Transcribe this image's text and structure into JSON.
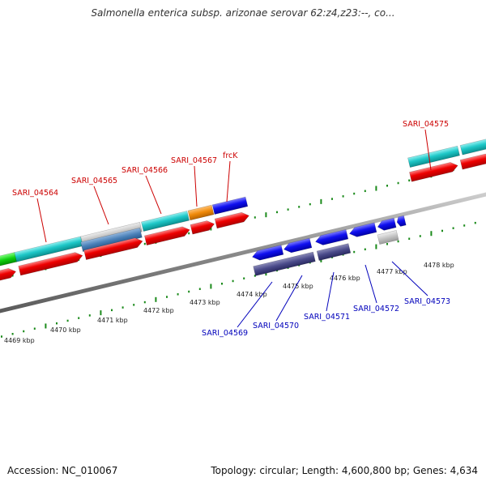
{
  "title": "Salmonella enterica subsp. arizonae serovar 62:z4,z23:--, co...",
  "footer": {
    "accession": "Accession: NC_010067",
    "summary": "Topology: circular; Length: 4,600,800 bp; Genes: 4,634"
  },
  "colors": {
    "forward_label": "#cc0000",
    "reverse_label": "#0000bb",
    "tick": "#1a8a1a",
    "cyan": "gCyan",
    "red": "gRed",
    "blue": "gBlue",
    "navy": "gNavy",
    "gray": "gGray",
    "steel": "gSteel",
    "orange": "gOrange",
    "green": "gGreen"
  },
  "scale_labels": [
    "4469 kbp",
    "4470 kbp",
    "4471 kbp",
    "4472 kbp",
    "4473 kbp",
    "4474 kbp",
    "4475 kbp",
    "4476 kbp",
    "4477 kbp",
    "4478 kbp"
  ],
  "gene_labels_forward": [
    "SARI_04564",
    "SARI_04565",
    "SARI_04566",
    "SARI_04567",
    "frcK",
    "SARI_04575"
  ],
  "gene_labels_reverse": [
    "SARI_04569",
    "SARI_04570",
    "SARI_04571",
    "SARI_04572",
    "SARI_04573"
  ]
}
